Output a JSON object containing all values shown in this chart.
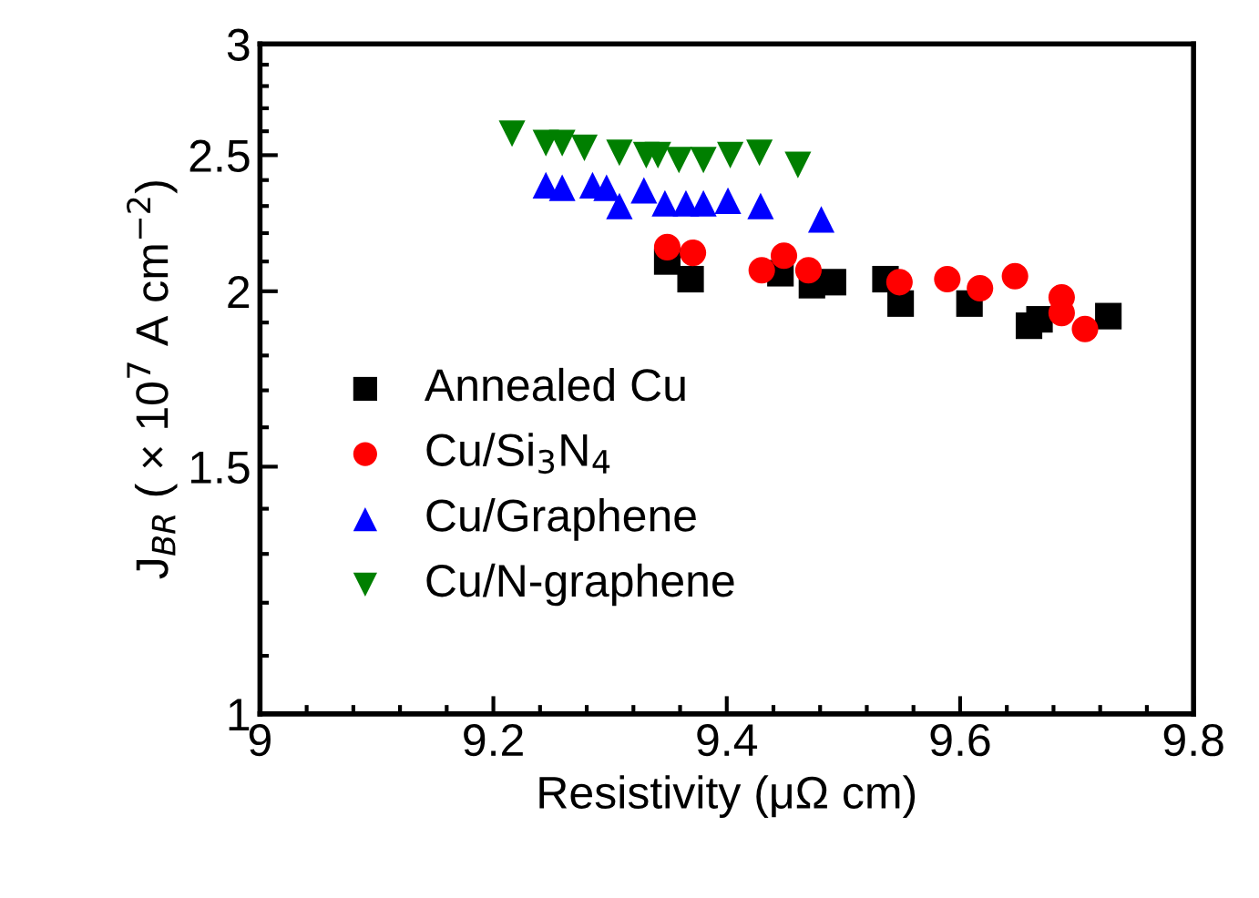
{
  "chart_data": {
    "type": "scatter",
    "xlabel": "Resistivity (μΩ cm)",
    "ylabel": "J$_{BR}$ ( × 10$^{7}$ A cm$^{−2}$)",
    "log": "y",
    "xlim": [
      9,
      9.8
    ],
    "xticks": [
      9,
      9.2,
      9.4,
      9.6,
      9.8
    ],
    "ylim": [
      1,
      3
    ],
    "yticks": [
      1,
      1.5,
      2,
      2.5,
      3
    ],
    "grid": false,
    "legend": "lower left",
    "series": [
      {
        "name": "Annealed Cu",
        "color": "#000000",
        "marker": "square",
        "x": [
          9.349,
          9.369,
          9.446,
          9.473,
          9.491,
          9.536,
          9.549,
          9.608,
          9.659,
          9.668,
          9.727
        ],
        "values": [
          2.1,
          2.04,
          2.06,
          2.02,
          2.03,
          2.04,
          1.96,
          1.96,
          1.89,
          1.91,
          1.92
        ]
      },
      {
        "name": "Cu/Si$_{3}$N$_{4}$",
        "color": "#ff0000",
        "marker": "circle",
        "x": [
          9.349,
          9.371,
          9.43,
          9.449,
          9.47,
          9.548,
          9.589,
          9.617,
          9.647,
          9.687,
          9.687,
          9.707
        ],
        "values": [
          2.15,
          2.13,
          2.07,
          2.12,
          2.07,
          2.03,
          2.04,
          2.01,
          2.05,
          1.98,
          1.93,
          1.88
        ]
      },
      {
        "name": "Cu/Graphene",
        "color": "#0000ff",
        "marker": "triangle",
        "x": [
          9.245,
          9.259,
          9.285,
          9.297,
          9.308,
          9.329,
          9.347,
          9.365,
          9.38,
          9.401,
          9.429,
          9.481
        ],
        "values": [
          2.38,
          2.37,
          2.38,
          2.37,
          2.3,
          2.36,
          2.31,
          2.31,
          2.31,
          2.32,
          2.3,
          2.25
        ]
      },
      {
        "name": "Cu/N-graphene",
        "color": "#007f00",
        "marker": "triangle_down",
        "x": [
          9.216,
          9.245,
          9.259,
          9.278,
          9.308,
          9.331,
          9.341,
          9.359,
          9.38,
          9.403,
          9.428,
          9.461
        ],
        "values": [
          2.59,
          2.55,
          2.55,
          2.53,
          2.51,
          2.5,
          2.5,
          2.48,
          2.48,
          2.5,
          2.51,
          2.46
        ]
      }
    ]
  }
}
